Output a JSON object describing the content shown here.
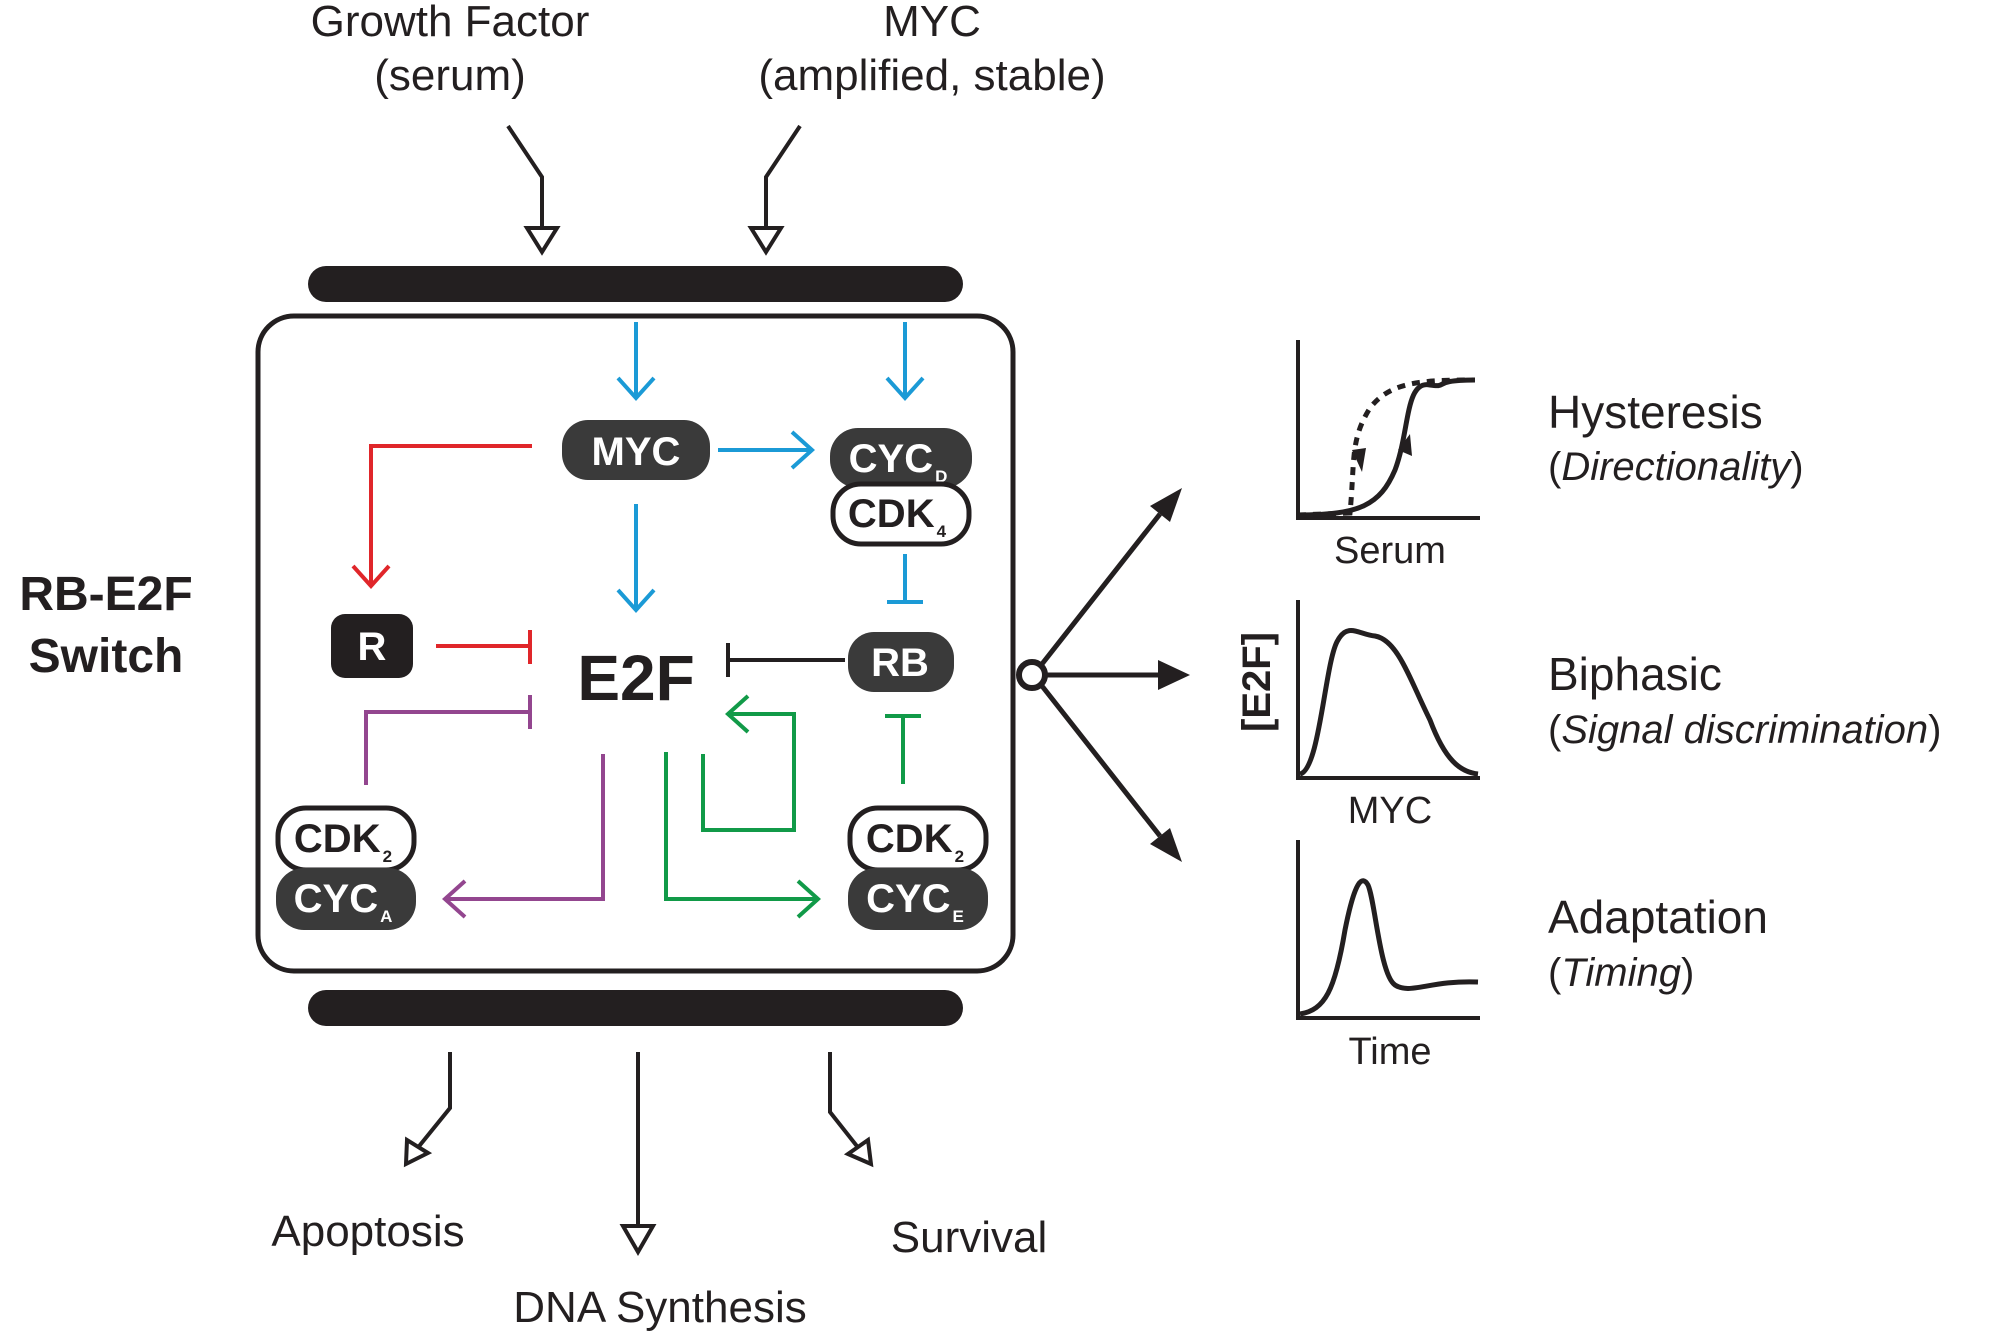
{
  "inputs": {
    "growth_factor": {
      "line1": "Growth Factor",
      "line2": "(serum)"
    },
    "myc": {
      "line1": "MYC",
      "line2": "(amplified, stable)"
    }
  },
  "switch_label": {
    "line1": "RB-E2F",
    "line2": "Switch"
  },
  "nodes": {
    "myc": "MYC",
    "cycd": {
      "main": "CYC",
      "sub": "D"
    },
    "cdk4": {
      "main": "CDK",
      "sub": "4"
    },
    "r": "R",
    "e2f": "E2F",
    "rb": "RB",
    "cdk2_a": {
      "main": "CDK",
      "sub": "2"
    },
    "cyca": {
      "main": "CYC",
      "sub": "A"
    },
    "cdk2_e": {
      "main": "CDK",
      "sub": "2"
    },
    "cyce": {
      "main": "CYC",
      "sub": "E"
    }
  },
  "outputs": {
    "apoptosis": "Apoptosis",
    "dna_synthesis": "DNA Synthesis",
    "survival": "Survival"
  },
  "y_axis_label": "[E2F]",
  "properties": [
    {
      "name": "Hysteresis",
      "paren_open": "(",
      "detail": "Directionality",
      "paren_close": ")",
      "x_axis": "Serum"
    },
    {
      "name": "Biphasic",
      "paren_open": "(",
      "detail": "Signal discrimination",
      "paren_close": ")",
      "x_axis": "MYC"
    },
    {
      "name": "Adaptation",
      "paren_open": "(",
      "detail": "Timing",
      "paren_close": ")",
      "x_axis": "Time"
    }
  ],
  "colors": {
    "ink": "#231f20",
    "node_fill": "#3a3a3a",
    "blue": "#1b9ad6",
    "red": "#e0262a",
    "purple": "#93468f",
    "green": "#119a48"
  }
}
